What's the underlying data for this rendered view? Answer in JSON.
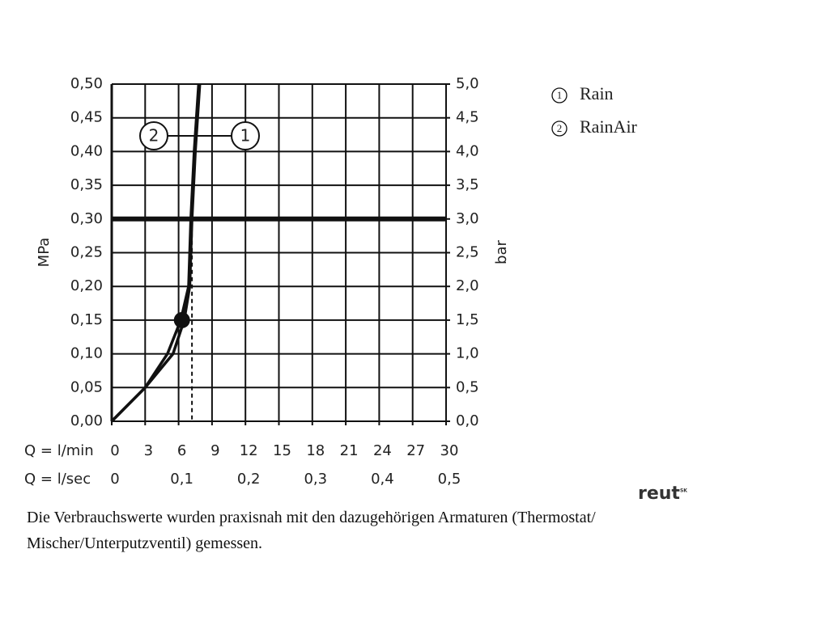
{
  "chart_data": {
    "type": "line",
    "xlabel": "Q = l/min",
    "x2label": "Q = l/sec",
    "ylabel": "MPa",
    "y2label": "bar",
    "xlim": [
      0,
      30
    ],
    "xticks": [
      0,
      3,
      6,
      9,
      12,
      15,
      18,
      21,
      24,
      27,
      30
    ],
    "x2lim": [
      0,
      0.5
    ],
    "x2ticks": [
      0,
      {
        "value": 0.1,
        "label": "0,1"
      },
      {
        "value": 0.2,
        "label": "0,2"
      },
      {
        "value": 0.3,
        "label": "0,3"
      },
      {
        "value": 0.4,
        "label": "0,4"
      },
      {
        "value": 0.5,
        "label": "0,5"
      }
    ],
    "ylim": [
      0,
      0.5
    ],
    "yticks": [
      {
        "value": 0,
        "label": "0,00"
      },
      {
        "value": 0.05,
        "label": "0,05"
      },
      {
        "value": 0.1,
        "label": "0,10"
      },
      {
        "value": 0.15,
        "label": "0,15"
      },
      {
        "value": 0.2,
        "label": "0,20"
      },
      {
        "value": 0.25,
        "label": "0,25"
      },
      {
        "value": 0.3,
        "label": "0,30"
      },
      {
        "value": 0.35,
        "label": "0,35"
      },
      {
        "value": 0.4,
        "label": "0,40"
      },
      {
        "value": 0.45,
        "label": "0,45"
      },
      {
        "value": 0.5,
        "label": "0,50"
      }
    ],
    "y2lim": [
      0,
      5
    ],
    "y2ticks": [
      {
        "value": 0,
        "label": "0,0"
      },
      {
        "value": 0.5,
        "label": "0,5"
      },
      {
        "value": 1,
        "label": "1,0"
      },
      {
        "value": 1.5,
        "label": "1,5"
      },
      {
        "value": 2,
        "label": "2,0"
      },
      {
        "value": 2.5,
        "label": "2,5"
      },
      {
        "value": 3,
        "label": "3,0"
      },
      {
        "value": 3.5,
        "label": "3,5"
      },
      {
        "value": 4,
        "label": "4,0"
      },
      {
        "value": 4.5,
        "label": "4,5"
      },
      {
        "value": 5,
        "label": "5,0"
      }
    ],
    "grid": true,
    "reference_y": 0.3,
    "operating_point": {
      "x": 6.3,
      "y": 0.15
    },
    "dashed_x": 7.2,
    "series": [
      {
        "name": "Rain",
        "label": "1",
        "color": "#111111",
        "x": [
          0,
          3,
          5,
          6.2,
          6.9,
          7.1,
          7.4,
          7.8
        ],
        "values": [
          0,
          0.05,
          0.1,
          0.15,
          0.2,
          0.3,
          0.4,
          0.5
        ]
      },
      {
        "name": "RainAir",
        "label": "2",
        "color": "#111111",
        "x": [
          0,
          3,
          5.5,
          6.5,
          7.0,
          7.2,
          7.5,
          7.9
        ],
        "values": [
          0,
          0.05,
          0.1,
          0.15,
          0.2,
          0.3,
          0.4,
          0.5
        ]
      }
    ]
  },
  "footnote": "Die Verbrauchswerte wurden praxisnah mit den dazugehörigen Armaturen (Thermostat/ Mischer/Unterputzventil) gemessen.",
  "logo": "reut",
  "logo_sup": "SK"
}
